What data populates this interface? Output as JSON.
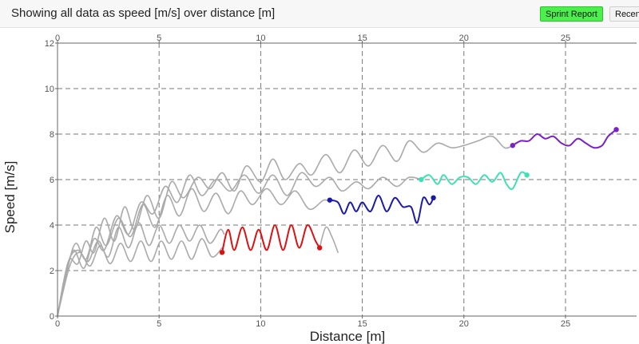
{
  "header": {
    "title": "Showing all data as speed [m/s] over distance [m]",
    "sprint_report_label": "Sprint Report",
    "recent_label": "Recent"
  },
  "chart_data": {
    "type": "line",
    "title": "",
    "xlabel": "Distance [m]",
    "ylabel": "Speed [m/s]",
    "xlim": [
      0,
      28.5
    ],
    "ylim": [
      0,
      12
    ],
    "x_ticks": [
      0,
      5,
      10,
      15,
      20,
      25
    ],
    "y_ticks": [
      0,
      2,
      4,
      6,
      8,
      10,
      12
    ],
    "grid": true,
    "series": [
      {
        "color": "#aaaaaa",
        "values": [
          [
            0,
            0
          ],
          [
            0.3,
            1.5
          ],
          [
            0.6,
            2.5
          ],
          [
            1.0,
            2.3
          ],
          [
            1.4,
            3.3
          ],
          [
            1.8,
            2.8
          ],
          [
            2.3,
            4.3
          ],
          [
            2.8,
            3.3
          ],
          [
            3.3,
            4.8
          ],
          [
            3.8,
            3.8
          ],
          [
            4.4,
            5.3
          ],
          [
            5.0,
            4.3
          ],
          [
            5.6,
            5.9
          ],
          [
            6.2,
            5.2
          ],
          [
            6.9,
            6.1
          ],
          [
            7.5,
            5.6
          ],
          [
            8.1,
            6.3
          ],
          [
            8.7,
            5.5
          ],
          [
            9.3,
            6.6
          ],
          [
            10.0,
            5.9
          ],
          [
            10.6,
            6.9
          ],
          [
            11.2,
            6.0
          ],
          [
            11.9,
            6.7
          ],
          [
            12.5,
            6.2
          ],
          [
            13.2,
            7.1
          ],
          [
            13.9,
            6.3
          ],
          [
            14.6,
            7.3
          ],
          [
            15.3,
            6.6
          ],
          [
            16.0,
            7.5
          ],
          [
            16.7,
            6.8
          ],
          [
            17.3,
            7.7
          ],
          [
            18.0,
            7.2
          ],
          [
            18.7,
            7.6
          ],
          [
            19.4,
            7.4
          ],
          [
            20.0,
            7.5
          ],
          [
            20.7,
            7.7
          ],
          [
            21.4,
            7.9
          ],
          [
            22.0,
            7.4
          ],
          [
            22.4,
            7.5
          ]
        ]
      },
      {
        "color": "#aaaaaa",
        "values": [
          [
            0,
            0
          ],
          [
            0.4,
            1.8
          ],
          [
            0.8,
            2.9
          ],
          [
            1.3,
            2.1
          ],
          [
            1.8,
            3.4
          ],
          [
            2.3,
            2.9
          ],
          [
            2.9,
            4.4
          ],
          [
            3.5,
            3.6
          ],
          [
            4.1,
            5.0
          ],
          [
            4.7,
            4.5
          ],
          [
            5.3,
            5.7
          ],
          [
            5.9,
            5.0
          ],
          [
            6.5,
            6.2
          ],
          [
            7.1,
            5.3
          ],
          [
            7.8,
            6.0
          ],
          [
            8.5,
            5.5
          ],
          [
            9.2,
            6.2
          ],
          [
            9.9,
            5.4
          ],
          [
            10.6,
            6.2
          ],
          [
            11.3,
            5.3
          ],
          [
            12.0,
            6.3
          ],
          [
            12.7,
            5.7
          ],
          [
            13.4,
            6.1
          ],
          [
            14.0,
            5.5
          ],
          [
            14.7,
            5.9
          ],
          [
            15.3,
            5.6
          ],
          [
            16.0,
            6.1
          ],
          [
            16.7,
            5.7
          ],
          [
            17.3,
            6.1
          ],
          [
            17.9,
            6.0
          ]
        ]
      },
      {
        "color": "#aaaaaa",
        "values": [
          [
            0,
            0
          ],
          [
            0.5,
            2.1
          ],
          [
            0.9,
            3.2
          ],
          [
            1.4,
            2.5
          ],
          [
            1.9,
            3.9
          ],
          [
            2.4,
            3.1
          ],
          [
            3.0,
            4.3
          ],
          [
            3.6,
            3.5
          ],
          [
            4.2,
            4.9
          ],
          [
            4.8,
            3.9
          ],
          [
            5.4,
            5.3
          ],
          [
            6.0,
            4.4
          ],
          [
            6.6,
            5.6
          ],
          [
            7.2,
            4.6
          ],
          [
            7.8,
            5.4
          ],
          [
            8.4,
            4.5
          ],
          [
            9.0,
            5.5
          ],
          [
            9.6,
            4.9
          ],
          [
            10.3,
            5.6
          ],
          [
            11.0,
            4.9
          ],
          [
            11.7,
            5.5
          ],
          [
            12.4,
            4.7
          ],
          [
            13.1,
            5.1
          ],
          [
            13.4,
            5.0
          ]
        ]
      },
      {
        "color": "#aaaaaa",
        "values": [
          [
            0,
            0
          ],
          [
            0.5,
            2.3
          ],
          [
            1.0,
            2.9
          ],
          [
            1.5,
            2.4
          ],
          [
            2.0,
            3.3
          ],
          [
            2.5,
            2.6
          ],
          [
            3.0,
            3.9
          ],
          [
            3.5,
            3.0
          ],
          [
            4.0,
            4.1
          ],
          [
            4.5,
            3.1
          ],
          [
            5.0,
            4.0
          ],
          [
            5.5,
            3.2
          ],
          [
            6.0,
            4.0
          ],
          [
            6.5,
            3.3
          ],
          [
            7.0,
            4.0
          ],
          [
            7.5,
            3.2
          ],
          [
            8.0,
            3.8
          ],
          [
            8.2,
            3.6
          ]
        ]
      },
      {
        "color": "#aaaaaa",
        "values": [
          [
            0,
            0
          ],
          [
            0.6,
            2.2
          ],
          [
            1.1,
            2.8
          ],
          [
            1.6,
            2.2
          ],
          [
            2.1,
            3.1
          ],
          [
            2.6,
            2.3
          ],
          [
            3.1,
            3.2
          ],
          [
            3.6,
            2.4
          ],
          [
            4.1,
            3.3
          ],
          [
            4.6,
            2.4
          ],
          [
            5.1,
            3.3
          ],
          [
            5.6,
            2.5
          ],
          [
            6.1,
            3.3
          ],
          [
            6.6,
            2.5
          ],
          [
            7.1,
            3.4
          ],
          [
            7.6,
            2.6
          ],
          [
            8.1,
            3.0
          ]
        ]
      },
      {
        "color": "#aaaaaa",
        "values": [
          [
            12.9,
            3.0
          ],
          [
            13.2,
            3.9
          ],
          [
            13.5,
            3.5
          ],
          [
            13.8,
            2.8
          ]
        ]
      },
      {
        "color": "#dd1111",
        "values": [
          [
            8.1,
            2.8
          ],
          [
            8.4,
            3.8
          ],
          [
            8.7,
            2.9
          ],
          [
            9.1,
            3.9
          ],
          [
            9.5,
            2.9
          ],
          [
            9.9,
            3.8
          ],
          [
            10.3,
            2.9
          ],
          [
            10.7,
            4.0
          ],
          [
            11.1,
            2.9
          ],
          [
            11.5,
            4.0
          ],
          [
            11.9,
            3.0
          ],
          [
            12.3,
            4.0
          ],
          [
            12.7,
            3.3
          ],
          [
            12.9,
            3.0
          ]
        ]
      },
      {
        "color": "#1a1aa8",
        "values": [
          [
            13.4,
            5.1
          ],
          [
            13.8,
            5.0
          ],
          [
            14.1,
            4.5
          ],
          [
            14.4,
            5.0
          ],
          [
            14.7,
            4.6
          ],
          [
            15.0,
            5.0
          ],
          [
            15.4,
            4.6
          ],
          [
            15.8,
            5.3
          ],
          [
            16.2,
            4.6
          ],
          [
            16.6,
            5.2
          ],
          [
            17.0,
            4.8
          ],
          [
            17.4,
            4.8
          ],
          [
            17.7,
            4.1
          ],
          [
            18.0,
            5.2
          ],
          [
            18.3,
            4.9
          ],
          [
            18.5,
            5.2
          ]
        ]
      },
      {
        "color": "#3de2b4",
        "values": [
          [
            17.9,
            6.0
          ],
          [
            18.3,
            6.2
          ],
          [
            18.7,
            5.8
          ],
          [
            19.0,
            6.2
          ],
          [
            19.4,
            5.8
          ],
          [
            19.8,
            6.1
          ],
          [
            20.2,
            6.1
          ],
          [
            20.6,
            5.8
          ],
          [
            21.0,
            6.2
          ],
          [
            21.4,
            5.9
          ],
          [
            21.8,
            6.3
          ],
          [
            22.1,
            5.8
          ],
          [
            22.4,
            5.6
          ],
          [
            22.8,
            6.3
          ],
          [
            23.1,
            6.2
          ]
        ]
      },
      {
        "color": "#7b1fc8",
        "values": [
          [
            22.4,
            7.5
          ],
          [
            22.8,
            7.7
          ],
          [
            23.2,
            7.7
          ],
          [
            23.6,
            8.0
          ],
          [
            24.0,
            7.8
          ],
          [
            24.4,
            7.9
          ],
          [
            24.8,
            7.6
          ],
          [
            25.2,
            7.5
          ],
          [
            25.6,
            7.8
          ],
          [
            26.0,
            7.6
          ],
          [
            26.4,
            7.4
          ],
          [
            26.8,
            7.5
          ],
          [
            27.1,
            7.9
          ],
          [
            27.5,
            8.2
          ]
        ]
      }
    ]
  }
}
